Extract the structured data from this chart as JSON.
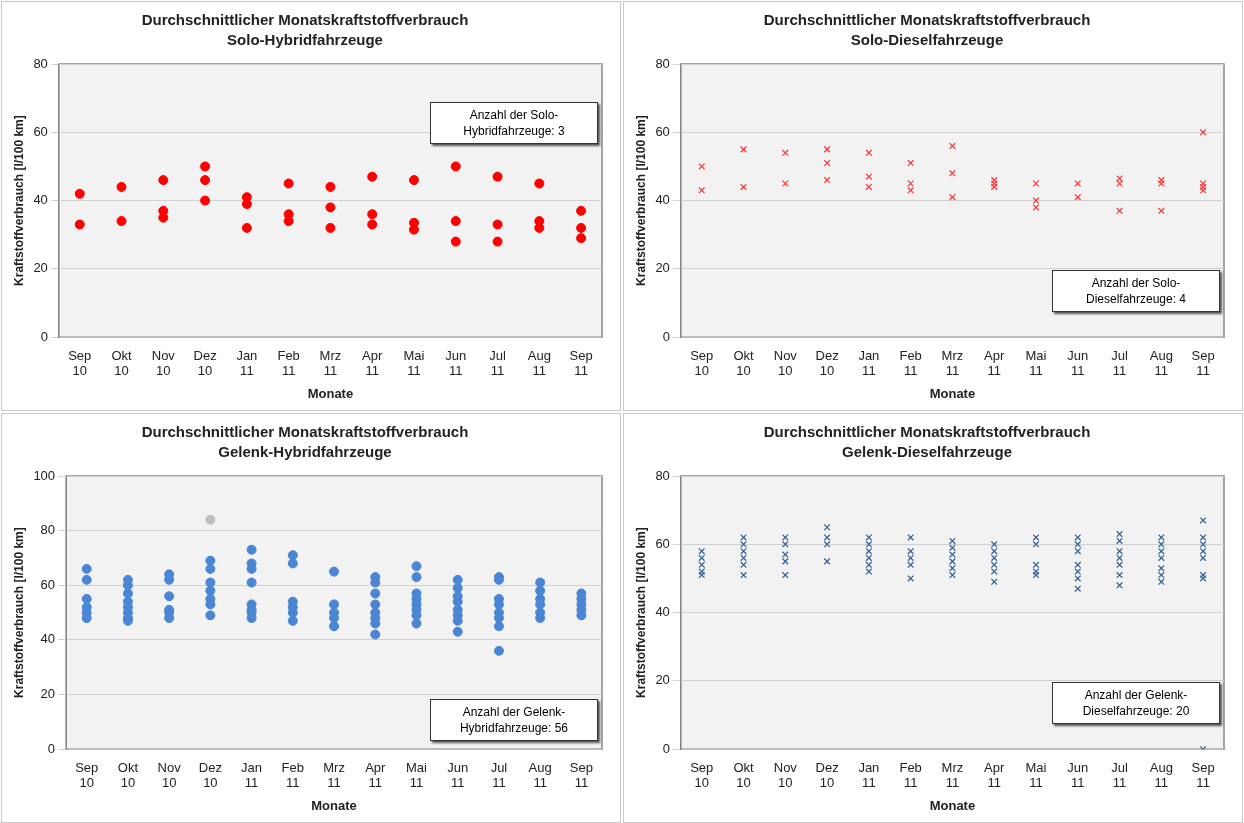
{
  "chart_data": [
    {
      "type": "scatter",
      "title": "Durchschnittlicher Monatskraftstoffverbrauch",
      "subtitle": "Solo-Hybridfahrzeuge",
      "xlabel": "Monate",
      "ylabel": "Kraftstoffverbrauch [l/100 km]",
      "categories": [
        "Sep 10",
        "Okt 10",
        "Nov 10",
        "Dez 10",
        "Jan 11",
        "Feb 11",
        "Mrz 11",
        "Apr 11",
        "Mai 11",
        "Jun 11",
        "Jul 11",
        "Aug 11",
        "Sep 11"
      ],
      "ylim": [
        0,
        80
      ],
      "yticks": [
        0,
        20,
        40,
        60,
        80
      ],
      "grid": "y",
      "marker": "circle",
      "annotations": [
        "Anzahl der Solo-Hybridfahrzeuge: 3"
      ],
      "series": [
        {
          "color": "#ff0000",
          "x": [
            "Sep 10",
            "Sep 10",
            "Okt 10",
            "Okt 10",
            "Nov 10",
            "Nov 10",
            "Nov 10",
            "Dez 10",
            "Dez 10",
            "Dez 10",
            "Jan 11",
            "Jan 11",
            "Jan 11",
            "Feb 11",
            "Feb 11",
            "Feb 11",
            "Mrz 11",
            "Mrz 11",
            "Mrz 11",
            "Apr 11",
            "Apr 11",
            "Apr 11",
            "Mai 11",
            "Mai 11",
            "Mai 11",
            "Jun 11",
            "Jun 11",
            "Jun 11",
            "Jul 11",
            "Jul 11",
            "Jul 11",
            "Aug 11",
            "Aug 11",
            "Aug 11",
            "Sep 11",
            "Sep 11",
            "Sep 11"
          ],
          "values": [
            42,
            33,
            44,
            34,
            46,
            37,
            35,
            50,
            46,
            40,
            41,
            39,
            32,
            45,
            36,
            34,
            44,
            38,
            32,
            47,
            36,
            33,
            46,
            33.5,
            31.5,
            50,
            34,
            28,
            47,
            33,
            28,
            45,
            34,
            32,
            37,
            32,
            29
          ]
        }
      ]
    },
    {
      "type": "scatter",
      "title": "Durchschnittlicher Monatskraftstoffverbrauch",
      "subtitle": "Solo-Dieselfahrzeuge",
      "xlabel": "Monate",
      "ylabel": "Kraftstoffverbrauch [l/100 km]",
      "categories": [
        "Sep 10",
        "Okt 10",
        "Nov 10",
        "Dez 10",
        "Jan 11",
        "Feb 11",
        "Mrz 11",
        "Apr 11",
        "Mai 11",
        "Jun 11",
        "Jul 11",
        "Aug 11",
        "Sep 11"
      ],
      "ylim": [
        0,
        80
      ],
      "yticks": [
        0,
        20,
        40,
        60,
        80
      ],
      "grid": "y",
      "marker": "cross",
      "annotations": [
        "Anzahl der Solo-Dieselfahrzeuge: 4"
      ],
      "series": [
        {
          "color": "#ff3333",
          "x": [
            "Sep 10",
            "Sep 10",
            "Okt 10",
            "Okt 10",
            "Nov 10",
            "Nov 10",
            "Dez 10",
            "Dez 10",
            "Dez 10",
            "Jan 11",
            "Jan 11",
            "Jan 11",
            "Feb 11",
            "Feb 11",
            "Feb 11",
            "Mrz 11",
            "Mrz 11",
            "Mrz 11",
            "Apr 11",
            "Apr 11",
            "Apr 11",
            "Mai 11",
            "Mai 11",
            "Mai 11",
            "Jun 11",
            "Jun 11",
            "Jul 11",
            "Jul 11",
            "Jul 11",
            "Aug 11",
            "Aug 11",
            "Aug 11",
            "Sep 11",
            "Sep 11",
            "Sep 11",
            "Sep 11"
          ],
          "values": [
            50,
            43,
            55,
            44,
            54,
            45,
            55,
            51,
            46,
            54,
            47,
            44,
            51,
            45,
            43,
            56,
            48,
            41,
            46,
            45,
            44,
            45,
            40,
            38,
            45,
            41,
            46.5,
            45,
            37,
            46,
            45,
            37,
            60,
            45,
            44,
            43
          ]
        }
      ]
    },
    {
      "type": "scatter",
      "title": "Durchschnittlicher Monatskraftstoffverbrauch",
      "subtitle": "Gelenk-Hybridfahrzeuge",
      "xlabel": "Monate",
      "ylabel": "Kraftstoffverbrauch [l/100 km]",
      "categories": [
        "Sep 10",
        "Okt 10",
        "Nov 10",
        "Dez 10",
        "Jan 11",
        "Feb 11",
        "Mrz 11",
        "Apr 11",
        "Mai 11",
        "Jun 11",
        "Jul 11",
        "Aug 11",
        "Sep 11"
      ],
      "ylim": [
        0,
        100
      ],
      "yticks": [
        0,
        20,
        40,
        60,
        80,
        100
      ],
      "grid": "y",
      "marker": "circle",
      "annotations": [
        "Anzahl der Gelenk-Hybridfahrzeuge: 56"
      ],
      "series": [
        {
          "color": "#4a86d4",
          "x": [
            "Sep 10",
            "Sep 10",
            "Sep 10",
            "Sep 10",
            "Sep 10",
            "Sep 10",
            "Okt 10",
            "Okt 10",
            "Okt 10",
            "Okt 10",
            "Okt 10",
            "Okt 10",
            "Okt 10",
            "Okt 10",
            "Nov 10",
            "Nov 10",
            "Nov 10",
            "Nov 10",
            "Nov 10",
            "Nov 10",
            "Dez 10",
            "Dez 10",
            "Dez 10",
            "Dez 10",
            "Dez 10",
            "Dez 10",
            "Dez 10",
            "Jan 11",
            "Jan 11",
            "Jan 11",
            "Jan 11",
            "Jan 11",
            "Jan 11",
            "Jan 11",
            "Jan 11",
            "Feb 11",
            "Feb 11",
            "Feb 11",
            "Feb 11",
            "Feb 11",
            "Feb 11",
            "Mrz 11",
            "Mrz 11",
            "Mrz 11",
            "Mrz 11",
            "Mrz 11",
            "Apr 11",
            "Apr 11",
            "Apr 11",
            "Apr 11",
            "Apr 11",
            "Apr 11",
            "Apr 11",
            "Apr 11",
            "Mai 11",
            "Mai 11",
            "Mai 11",
            "Mai 11",
            "Mai 11",
            "Mai 11",
            "Mai 11",
            "Mai 11",
            "Jun 11",
            "Jun 11",
            "Jun 11",
            "Jun 11",
            "Jun 11",
            "Jun 11",
            "Jun 11",
            "Jun 11",
            "Jul 11",
            "Jul 11",
            "Jul 11",
            "Jul 11",
            "Jul 11",
            "Jul 11",
            "Jul 11",
            "Jul 11",
            "Aug 11",
            "Aug 11",
            "Aug 11",
            "Aug 11",
            "Aug 11",
            "Aug 11",
            "Sep 11",
            "Sep 11",
            "Sep 11",
            "Sep 11",
            "Sep 11"
          ],
          "values": [
            66,
            62,
            55,
            52,
            50,
            48,
            62,
            60,
            57,
            54,
            52,
            50,
            48,
            47,
            64,
            62,
            56,
            51,
            50,
            48,
            69,
            66,
            61,
            58,
            55,
            53,
            49,
            73,
            68,
            66,
            61,
            53,
            51,
            50,
            48,
            71,
            68,
            54,
            52,
            50,
            47,
            65,
            53,
            50,
            48,
            45,
            63,
            61,
            57,
            53,
            50,
            48,
            46,
            42,
            67,
            63,
            57,
            55,
            53,
            51,
            49,
            46,
            62,
            59,
            56,
            54,
            51,
            49,
            47,
            43,
            63,
            62,
            55,
            53,
            50,
            48,
            45,
            36,
            61,
            58,
            55,
            53,
            50,
            48,
            57,
            55,
            53,
            51,
            49
          ]
        },
        {
          "color": "#bfbfbf",
          "x": [
            "Dez 10"
          ],
          "values": [
            84
          ]
        }
      ]
    },
    {
      "type": "scatter",
      "title": "Durchschnittlicher Monatskraftstoffverbrauch",
      "subtitle": "Gelenk-Dieselfahrzeuge",
      "xlabel": "Monate",
      "ylabel": "Kraftstoffverbrauch [l/100 km]",
      "categories": [
        "Sep 10",
        "Okt 10",
        "Nov 10",
        "Dez 10",
        "Jan 11",
        "Feb 11",
        "Mrz 11",
        "Apr 11",
        "Mai 11",
        "Jun 11",
        "Jul 11",
        "Aug 11",
        "Sep 11"
      ],
      "ylim": [
        0,
        80
      ],
      "yticks": [
        0,
        20,
        40,
        60,
        80
      ],
      "grid": "y",
      "marker": "cross",
      "annotations": [
        "Anzahl der Gelenk-Dieselfahrzeuge: 20"
      ],
      "series": [
        {
          "color": "#2f5f96",
          "x": [
            "Sep 10",
            "Sep 10",
            "Sep 10",
            "Sep 10",
            "Sep 10",
            "Okt 10",
            "Okt 10",
            "Okt 10",
            "Okt 10",
            "Okt 10",
            "Okt 10",
            "Nov 10",
            "Nov 10",
            "Nov 10",
            "Nov 10",
            "Nov 10",
            "Dez 10",
            "Dez 10",
            "Dez 10",
            "Dez 10",
            "Jan 11",
            "Jan 11",
            "Jan 11",
            "Jan 11",
            "Jan 11",
            "Jan 11",
            "Feb 11",
            "Feb 11",
            "Feb 11",
            "Feb 11",
            "Feb 11",
            "Mrz 11",
            "Mrz 11",
            "Mrz 11",
            "Mrz 11",
            "Mrz 11",
            "Mrz 11",
            "Apr 11",
            "Apr 11",
            "Apr 11",
            "Apr 11",
            "Apr 11",
            "Apr 11",
            "Mai 11",
            "Mai 11",
            "Mai 11",
            "Mai 11",
            "Mai 11",
            "Jun 11",
            "Jun 11",
            "Jun 11",
            "Jun 11",
            "Jun 11",
            "Jun 11",
            "Jun 11",
            "Jul 11",
            "Jul 11",
            "Jul 11",
            "Jul 11",
            "Jul 11",
            "Jul 11",
            "Jul 11",
            "Aug 11",
            "Aug 11",
            "Aug 11",
            "Aug 11",
            "Aug 11",
            "Aug 11",
            "Aug 11",
            "Sep 11",
            "Sep 11",
            "Sep 11",
            "Sep 11",
            "Sep 11",
            "Sep 11",
            "Sep 11",
            "Sep 11"
          ],
          "values": [
            58,
            56,
            54,
            52,
            51,
            62,
            60,
            58,
            56,
            54,
            51,
            62,
            60,
            57,
            55,
            51,
            65,
            62,
            60,
            55,
            62,
            60,
            58,
            56,
            54,
            52,
            62,
            58,
            56,
            54,
            50,
            61,
            59,
            57,
            55,
            53,
            51,
            60,
            58,
            56,
            54,
            52,
            49,
            62,
            60,
            54,
            52,
            51,
            62,
            60,
            58,
            54,
            52,
            50,
            47,
            63,
            61,
            58,
            56,
            54,
            51,
            48,
            62,
            60,
            58,
            56,
            53,
            51,
            49,
            67,
            62,
            60,
            58,
            56,
            51,
            50,
            0
          ]
        }
      ]
    }
  ]
}
